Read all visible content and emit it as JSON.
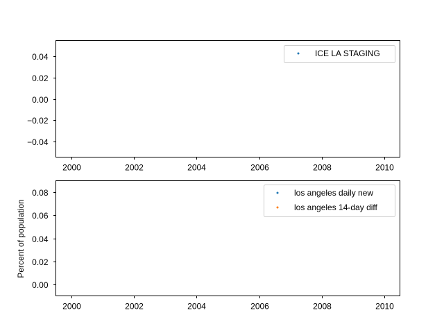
{
  "chart_data": [
    {
      "type": "scatter",
      "title": "",
      "xlabel": "",
      "ylabel": "",
      "xlim": [
        1999.5,
        2010.5
      ],
      "ylim": [
        -0.055,
        0.055
      ],
      "xticks": [
        2000,
        2002,
        2004,
        2006,
        2008,
        2010
      ],
      "xtick_labels": [
        "2000",
        "2002",
        "2004",
        "2006",
        "2008",
        "2010"
      ],
      "yticks": [
        -0.04,
        -0.02,
        0.0,
        0.02,
        0.04
      ],
      "ytick_labels": [
        "−0.04",
        "−0.02",
        "0.00",
        "0.02",
        "0.04"
      ],
      "legend_position": "top-right",
      "series": [
        {
          "name": "ICE LA STAGING",
          "color": "#1f77b4",
          "points": []
        }
      ]
    },
    {
      "type": "scatter",
      "title": "",
      "xlabel": "",
      "ylabel": "Percent of population",
      "xlim": [
        1999.5,
        2010.5
      ],
      "ylim": [
        -0.01,
        0.09
      ],
      "xticks": [
        2000,
        2002,
        2004,
        2006,
        2008,
        2010
      ],
      "xtick_labels": [
        "2000",
        "2002",
        "2004",
        "2006",
        "2008",
        "2010"
      ],
      "yticks": [
        0.0,
        0.02,
        0.04,
        0.06,
        0.08
      ],
      "ytick_labels": [
        "0.00",
        "0.02",
        "0.04",
        "0.06",
        "0.08"
      ],
      "legend_position": "top-right",
      "series": [
        {
          "name": "los angeles daily new",
          "color": "#1f77b4",
          "points": []
        },
        {
          "name": "los angeles 14-day diff",
          "color": "#ff7f0e",
          "points": []
        }
      ]
    }
  ]
}
